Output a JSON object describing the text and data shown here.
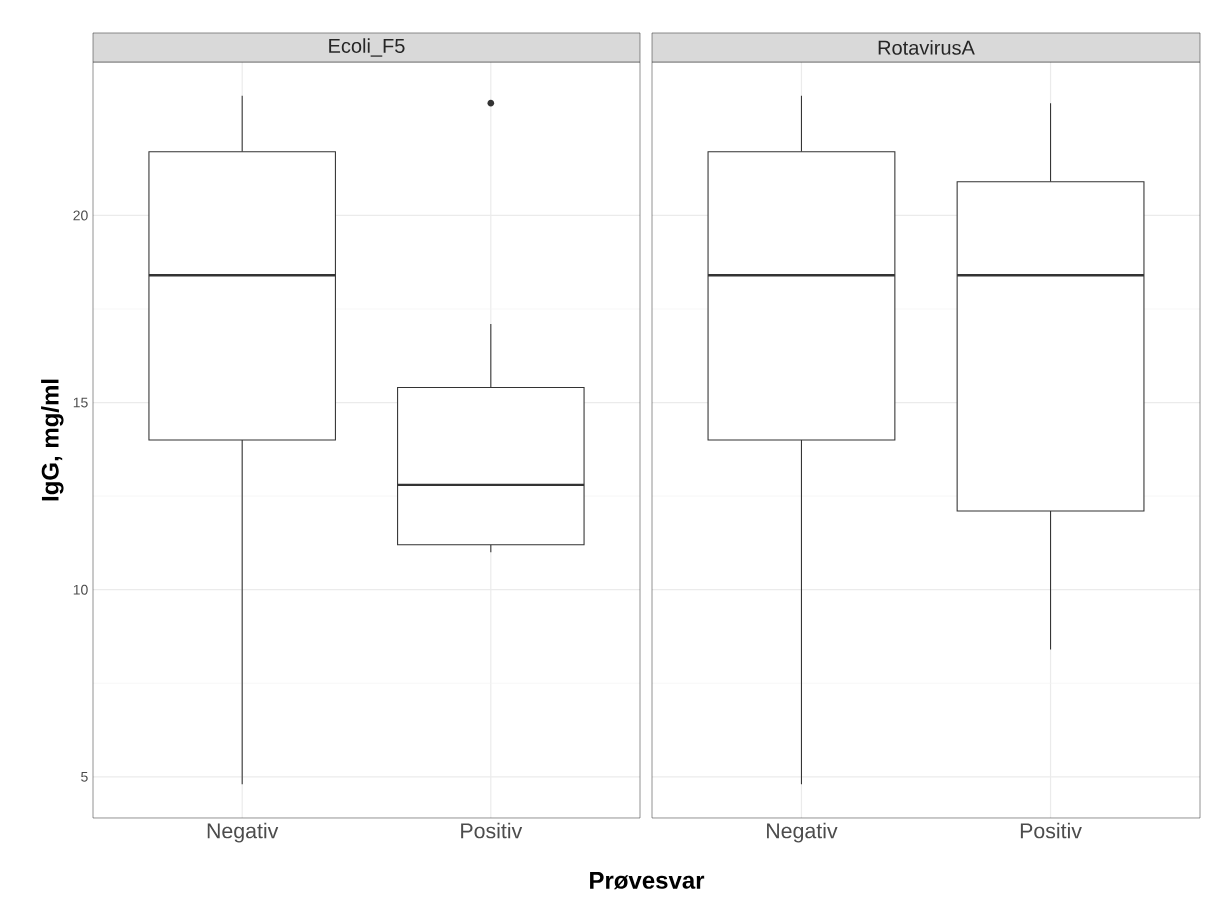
{
  "chart_data": [
    {
      "type": "box",
      "title": "Ecoli_F5",
      "xlabel": "Prøvesvar",
      "ylabel": "IgG, mg/ml",
      "categories": [
        "Negativ",
        "Positiv"
      ],
      "boxes": [
        {
          "low": 4.8,
          "q1": 14.0,
          "median": 18.4,
          "q3": 21.7,
          "high": 23.2
        },
        {
          "low": 11.0,
          "q1": 11.2,
          "median": 12.8,
          "q3": 15.4,
          "high": 17.1,
          "outliers": [
            23.0
          ]
        }
      ],
      "ylim": [
        3.9,
        24.1
      ],
      "yticks": [
        5,
        10,
        15,
        20
      ],
      "grid": true
    },
    {
      "type": "box",
      "title": "RotavirusA",
      "categories": [
        "Negativ",
        "Positiv"
      ],
      "boxes": [
        {
          "low": 4.8,
          "q1": 14.0,
          "median": 18.4,
          "q3": 21.7,
          "high": 23.2
        },
        {
          "low": 8.4,
          "q1": 12.1,
          "median": 18.4,
          "q3": 20.9,
          "high": 23.0
        }
      ],
      "ylim": [
        3.9,
        24.1
      ],
      "yticks": [
        5,
        10,
        15,
        20
      ],
      "grid": true,
      "tick_labels": "x"
    }
  ]
}
